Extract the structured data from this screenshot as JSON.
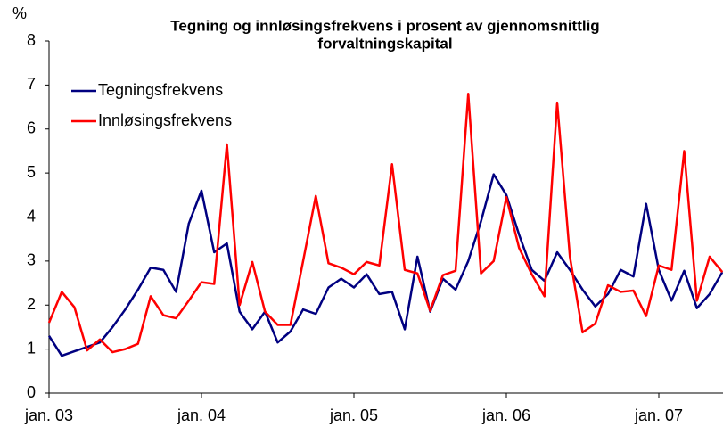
{
  "chart_data": {
    "type": "line",
    "title": [
      "Tegning og innløsingsfrekvens i prosent av gjennomsnittlig",
      "forvaltningskapital"
    ],
    "ylabel": "%",
    "categories": [
      "jan. 03",
      null,
      null,
      null,
      null,
      null,
      null,
      null,
      null,
      null,
      null,
      null,
      "jan. 04",
      null,
      null,
      null,
      null,
      null,
      null,
      null,
      null,
      null,
      null,
      null,
      "jan. 05",
      null,
      null,
      null,
      null,
      null,
      null,
      null,
      null,
      null,
      null,
      null,
      "jan. 06",
      null,
      null,
      null,
      null,
      null,
      null,
      null,
      null,
      null,
      null,
      null,
      "jan. 07",
      null,
      null,
      null,
      null,
      null
    ],
    "series": [
      {
        "name": "Tegningsfrekvens",
        "color": "#000080",
        "values": [
          1.3,
          0.85,
          0.95,
          1.05,
          1.15,
          1.5,
          1.9,
          2.35,
          2.85,
          2.8,
          2.3,
          3.85,
          4.6,
          3.2,
          3.4,
          1.85,
          1.45,
          1.85,
          1.15,
          1.4,
          1.9,
          1.8,
          2.4,
          2.6,
          2.4,
          2.7,
          2.25,
          2.3,
          1.45,
          3.1,
          1.85,
          2.6,
          2.35,
          3.0,
          3.9,
          4.97,
          4.5,
          3.6,
          2.8,
          2.55,
          3.2,
          2.8,
          2.35,
          1.97,
          2.25,
          2.8,
          2.65,
          4.3,
          2.8,
          2.1,
          2.78,
          1.93,
          2.25,
          2.75
        ]
      },
      {
        "name": "Innløsingsfrekvens",
        "color": "#ff0000",
        "values": [
          1.6,
          2.3,
          1.95,
          0.97,
          1.22,
          0.93,
          1.0,
          1.12,
          2.2,
          1.77,
          1.7,
          2.1,
          2.52,
          2.48,
          5.65,
          2.0,
          2.98,
          1.85,
          1.55,
          1.55,
          3.0,
          4.48,
          2.95,
          2.85,
          2.7,
          2.98,
          2.9,
          5.2,
          2.8,
          2.72,
          1.87,
          2.68,
          2.78,
          6.8,
          2.72,
          3.0,
          4.45,
          3.3,
          2.7,
          2.2,
          6.6,
          3.1,
          1.38,
          1.58,
          2.45,
          2.3,
          2.33,
          1.75,
          2.9,
          2.8,
          5.5,
          2.1,
          3.1,
          2.75
        ]
      }
    ],
    "ylim": [
      0,
      8
    ],
    "yticks": [
      0,
      1,
      2,
      3,
      4,
      5,
      6,
      7,
      8
    ],
    "grid": false,
    "legend": "upper left"
  }
}
